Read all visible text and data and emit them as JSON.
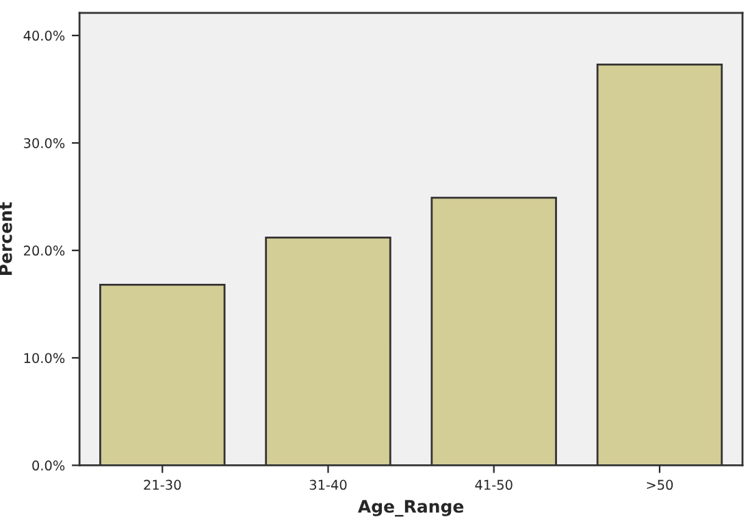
{
  "chart_data": {
    "type": "bar",
    "xlabel": "Age_Range",
    "ylabel": "Percent",
    "categories": [
      "21-30",
      "31-40",
      "41-50",
      ">50"
    ],
    "values": [
      16.8,
      21.2,
      24.9,
      37.3
    ],
    "color": "#d3cd96",
    "ylim": [
      0,
      42.1
    ],
    "yticks": [
      {
        "value": 0,
        "label": "0.0%"
      },
      {
        "value": 10,
        "label": "10.0%"
      },
      {
        "value": 20,
        "label": "20.0%"
      },
      {
        "value": 30,
        "label": "30.0%"
      },
      {
        "value": 40,
        "label": "40.0%"
      }
    ],
    "grid": false,
    "legend": false
  }
}
